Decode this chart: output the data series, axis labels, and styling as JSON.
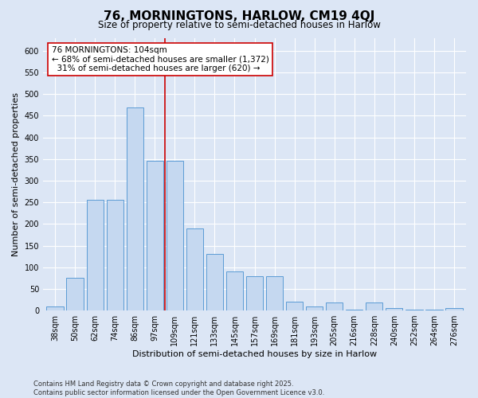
{
  "title": "76, MORNINGTONS, HARLOW, CM19 4QJ",
  "subtitle": "Size of property relative to semi-detached houses in Harlow",
  "xlabel": "Distribution of semi-detached houses by size in Harlow",
  "ylabel": "Number of semi-detached properties",
  "categories": [
    "38sqm",
    "50sqm",
    "62sqm",
    "74sqm",
    "86sqm",
    "97sqm",
    "109sqm",
    "121sqm",
    "133sqm",
    "145sqm",
    "157sqm",
    "169sqm",
    "181sqm",
    "193sqm",
    "205sqm",
    "216sqm",
    "228sqm",
    "240sqm",
    "252sqm",
    "264sqm",
    "276sqm"
  ],
  "values": [
    10,
    75,
    255,
    255,
    470,
    345,
    345,
    190,
    130,
    90,
    80,
    80,
    20,
    10,
    18,
    2,
    18,
    5,
    2,
    2,
    5
  ],
  "bar_color": "#c5d8f0",
  "bar_edge_color": "#5b9bd5",
  "vline_x": 6.0,
  "vline_color": "#cc0000",
  "annotation_text": "76 MORNINGTONS: 104sqm\n← 68% of semi-detached houses are smaller (1,372)\n  31% of semi-detached houses are larger (620) →",
  "annotation_box_color": "#ffffff",
  "annotation_box_edge_color": "#cc0000",
  "background_color": "#dce6f5",
  "plot_bg_color": "#dce6f5",
  "footer_text": "Contains HM Land Registry data © Crown copyright and database right 2025.\nContains public sector information licensed under the Open Government Licence v3.0.",
  "ylim": [
    0,
    630
  ],
  "yticks": [
    0,
    50,
    100,
    150,
    200,
    250,
    300,
    350,
    400,
    450,
    500,
    550,
    600
  ],
  "title_fontsize": 11,
  "subtitle_fontsize": 8.5,
  "axis_label_fontsize": 8,
  "tick_fontsize": 7,
  "footer_fontsize": 6,
  "annotation_fontsize": 7.5
}
